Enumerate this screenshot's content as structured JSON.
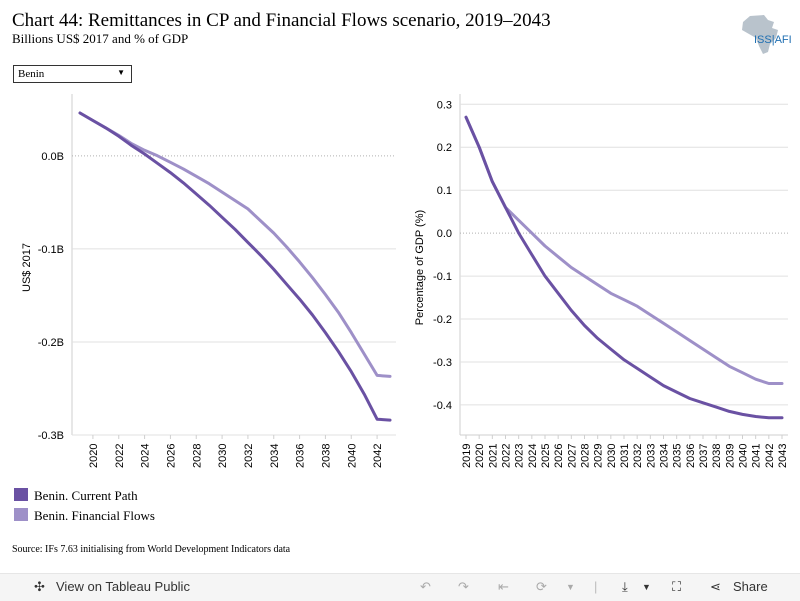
{
  "header": {
    "title": "Chart 44: Remittances in CP and Financial Flows scenario, 2019–2043",
    "subtitle": "Billions US$ 2017 and % of GDP",
    "logo_text": "ISS|AFI"
  },
  "filter": {
    "country": "Benin"
  },
  "legend": [
    {
      "label": "Benin. Current Path",
      "color": "#6a51a3"
    },
    {
      "label": "Benin. Financial Flows",
      "color": "#9e90c8"
    }
  ],
  "source": "Source: IFs 7.63 initialising from World Development Indicators data",
  "footer": {
    "view_label": "View on Tableau Public",
    "share_label": "Share"
  },
  "colors": {
    "current_path": "#6a51a3",
    "financial_flows": "#9e90c8"
  },
  "chart_data": [
    {
      "type": "line",
      "ylabel": "US$ 2017",
      "xlim": [
        2019,
        2043
      ],
      "ylim": [
        -0.3,
        0.06
      ],
      "yticks": [
        0.0,
        -0.1,
        -0.2,
        -0.3
      ],
      "ytick_labels": [
        "0.0B",
        "-0.1B",
        "-0.2B",
        "-0.3B"
      ],
      "xtick_labels": [
        "2020",
        "2022",
        "2024",
        "2026",
        "2028",
        "2030",
        "2032",
        "2034",
        "2036",
        "2038",
        "2040",
        "2042"
      ],
      "zero_line": "dotted",
      "x": [
        2019,
        2020,
        2021,
        2022,
        2023,
        2024,
        2025,
        2026,
        2027,
        2028,
        2029,
        2030,
        2031,
        2032,
        2033,
        2034,
        2035,
        2036,
        2037,
        2038,
        2039,
        2040,
        2041,
        2042,
        2043
      ],
      "series": [
        {
          "name": "Benin. Current Path",
          "values": [
            0.046,
            0.038,
            0.03,
            0.021,
            0.011,
            0.002,
            -0.008,
            -0.018,
            -0.029,
            -0.041,
            -0.053,
            -0.066,
            -0.079,
            -0.093,
            -0.107,
            -0.122,
            -0.138,
            -0.154,
            -0.171,
            -0.19,
            -0.21,
            -0.232,
            -0.256,
            -0.283,
            -0.284
          ]
        },
        {
          "name": "Benin. Financial Flows",
          "values": [
            0.046,
            0.038,
            0.03,
            0.022,
            0.013,
            0.006,
            0.0,
            -0.007,
            -0.014,
            -0.022,
            -0.03,
            -0.039,
            -0.048,
            -0.057,
            -0.07,
            -0.083,
            -0.098,
            -0.114,
            -0.131,
            -0.149,
            -0.168,
            -0.19,
            -0.213,
            -0.236,
            -0.237
          ]
        }
      ]
    },
    {
      "type": "line",
      "ylabel": "Percentage of GDP (%)",
      "xlim": [
        2019,
        2043
      ],
      "ylim": [
        -0.47,
        0.31
      ],
      "yticks": [
        0.3,
        0.2,
        0.1,
        0.0,
        -0.1,
        -0.2,
        -0.3,
        -0.4
      ],
      "ytick_labels": [
        "0.3",
        "0.2",
        "0.1",
        "0.0",
        "-0.1",
        "-0.2",
        "-0.3",
        "-0.4"
      ],
      "xtick_labels": [
        "2019",
        "2020",
        "2021",
        "2022",
        "2023",
        "2024",
        "2025",
        "2026",
        "2027",
        "2028",
        "2029",
        "2030",
        "2031",
        "2032",
        "2033",
        "2034",
        "2035",
        "2036",
        "2037",
        "2038",
        "2039",
        "2040",
        "2041",
        "2042",
        "2043"
      ],
      "zero_line": "dotted",
      "x": [
        2019,
        2020,
        2021,
        2022,
        2023,
        2024,
        2025,
        2026,
        2027,
        2028,
        2029,
        2030,
        2031,
        2032,
        2033,
        2034,
        2035,
        2036,
        2037,
        2038,
        2039,
        2040,
        2041,
        2042,
        2043
      ],
      "series": [
        {
          "name": "Benin. Current Path",
          "values": [
            0.27,
            0.2,
            0.12,
            0.06,
            0.0,
            -0.05,
            -0.1,
            -0.14,
            -0.18,
            -0.215,
            -0.245,
            -0.27,
            -0.295,
            -0.315,
            -0.335,
            -0.355,
            -0.37,
            -0.385,
            -0.395,
            -0.405,
            -0.415,
            -0.422,
            -0.427,
            -0.43,
            -0.43
          ]
        },
        {
          "name": "Benin. Financial Flows",
          "values": [
            0.27,
            0.2,
            0.12,
            0.06,
            0.03,
            0.0,
            -0.03,
            -0.055,
            -0.08,
            -0.1,
            -0.12,
            -0.14,
            -0.155,
            -0.17,
            -0.19,
            -0.21,
            -0.23,
            -0.25,
            -0.27,
            -0.29,
            -0.31,
            -0.325,
            -0.34,
            -0.35,
            -0.35
          ]
        }
      ]
    }
  ]
}
